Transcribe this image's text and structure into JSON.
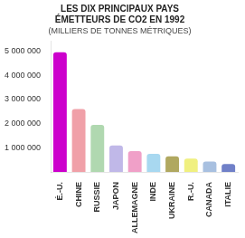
{
  "chart_data": {
    "type": "bar",
    "title": [
      "LES DIX PRINCIPAUX PAYS",
      "ÉMETTEURS DE CO2 EN 1992"
    ],
    "subtitle": "(MILLIERS DE TONNES MÉTRIQUES)",
    "categories": [
      "É.-U.",
      "CHINE",
      "RUSSIE",
      "JAPON",
      "ALLEMAGNE",
      "INDE",
      "UKRAINE",
      "R.-U.",
      "CANADA",
      "ITALIE"
    ],
    "values": [
      4950000,
      2600000,
      1950000,
      1100000,
      860000,
      750000,
      650000,
      550000,
      430000,
      330000
    ],
    "colors": [
      "#cc00cc",
      "#f0a0a8",
      "#b0d8b0",
      "#c0b8e8",
      "#f0a0c8",
      "#a8d8f0",
      "#b0a860",
      "#f0f080",
      "#a8c0e0",
      "#7080c8"
    ],
    "ylim": [
      0,
      5400000
    ],
    "yticks": [
      {
        "value": 1000000,
        "label": "1 000 000"
      },
      {
        "value": 2000000,
        "label": "2 000 000"
      },
      {
        "value": 3000000,
        "label": "3 000 000"
      },
      {
        "value": 4000000,
        "label": "4 000 000"
      },
      {
        "value": 5000000,
        "label": "5 000 000"
      }
    ],
    "grid": false
  }
}
